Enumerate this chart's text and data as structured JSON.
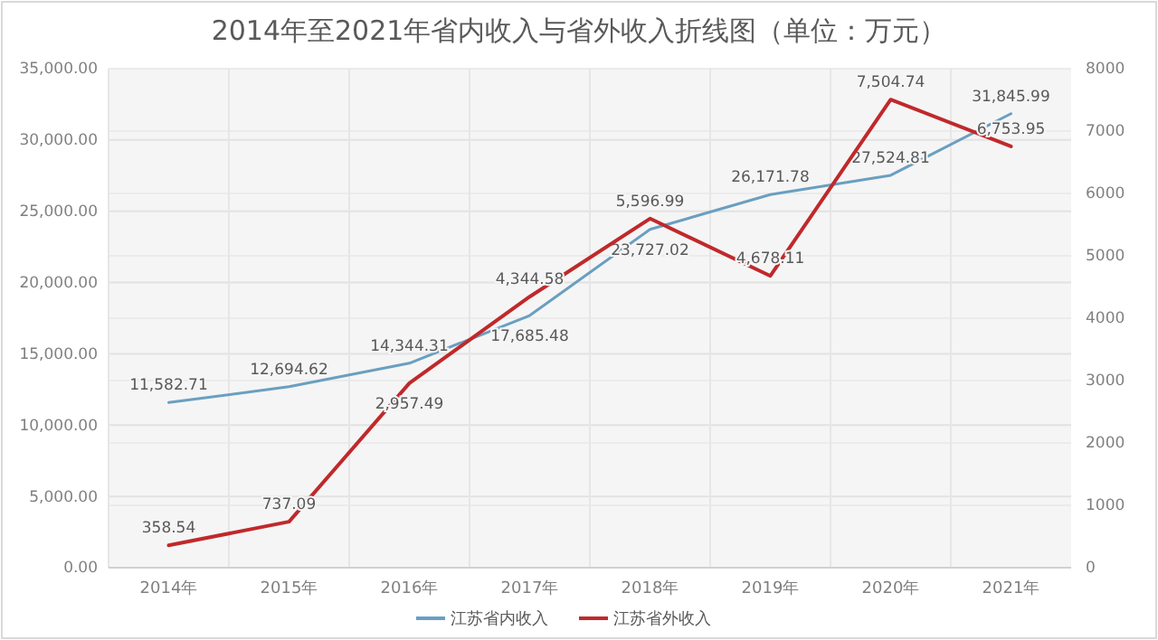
{
  "chart_data": {
    "type": "line",
    "title": "2014年至2021年省内收入与省外收入折线图（单位：万元）",
    "categories": [
      "2014年",
      "2015年",
      "2016年",
      "2017年",
      "2018年",
      "2019年",
      "2020年",
      "2021年"
    ],
    "series": [
      {
        "name": "江苏省内收入",
        "color": "#6a9fc0",
        "values": [
          11582.71,
          12694.62,
          14344.31,
          17685.48,
          23727.02,
          26171.78,
          27524.81,
          31845.99
        ],
        "value_labels": [
          "11,582.71",
          "12,694.62",
          "14,344.31",
          "17,685.48",
          "23,727.02",
          "26,171.78",
          "27,524.81",
          "31,845.99"
        ]
      },
      {
        "name": "江苏省外收入",
        "color": "#c0292b",
        "axis": "y2",
        "values": [
          358.54,
          737.09,
          2957.49,
          4344.58,
          5596.99,
          4678.11,
          7504.74,
          6753.95
        ],
        "value_labels": [
          "358.54",
          "737.09",
          "2,957.49",
          "4,344.58",
          "5,596.99",
          "4,678.11",
          "7,504.74",
          "6,753.95"
        ]
      }
    ],
    "ylim": [
      0,
      35000
    ],
    "yticks": [
      {
        "value": 0,
        "label": "0.00"
      },
      {
        "value": 5000,
        "label": "5,000.00"
      },
      {
        "value": 10000,
        "label": "10,000.00"
      },
      {
        "value": 15000,
        "label": "15,000.00"
      },
      {
        "value": 20000,
        "label": "20,000.00"
      },
      {
        "value": 25000,
        "label": "25,000.00"
      },
      {
        "value": 30000,
        "label": "30,000.00"
      },
      {
        "value": 35000,
        "label": "35,000.00"
      }
    ],
    "y2lim": [
      0,
      8000
    ],
    "y2ticks": [
      0,
      1000,
      2000,
      3000,
      4000,
      5000,
      6000,
      7000,
      8000
    ],
    "grid": true,
    "legend": "bottom",
    "marker": "none",
    "line_style": "solid"
  }
}
